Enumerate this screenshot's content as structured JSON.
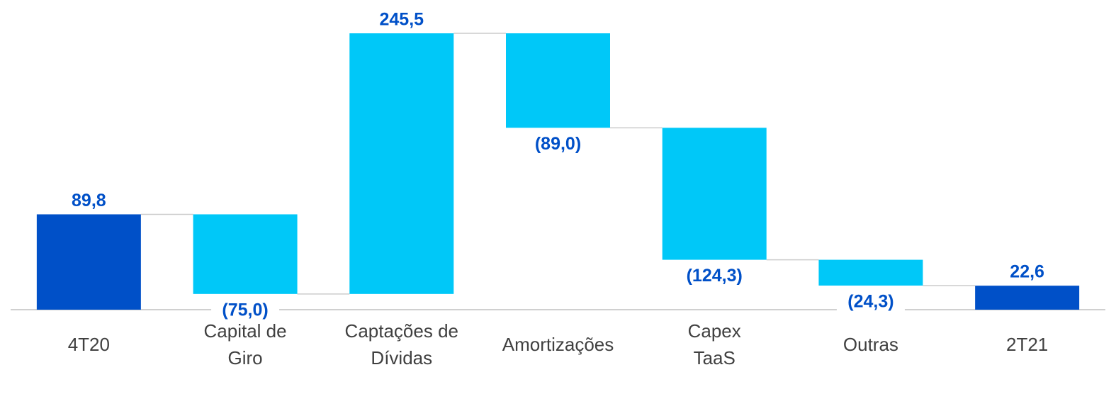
{
  "chart_data": {
    "type": "waterfall",
    "categories": [
      "4T20",
      "Capital de\nGiro",
      "Captações de\nDívidas",
      "Amortizações",
      "Capex\nTaaS",
      "Outras",
      "2T21"
    ],
    "values": [
      89.8,
      -75.0,
      245.5,
      -89.0,
      -124.3,
      -24.3,
      22.6
    ],
    "value_labels": [
      "89,8",
      "(75,0)",
      "245,5",
      "(89,0)",
      "(124,3)",
      "(24,3)",
      "22,6"
    ],
    "measures": [
      "total",
      "relative",
      "relative",
      "relative",
      "relative",
      "relative",
      "total"
    ],
    "total_color": "#0050c8",
    "delta_color": "#00c8f8",
    "label_color": "#0050c8"
  }
}
